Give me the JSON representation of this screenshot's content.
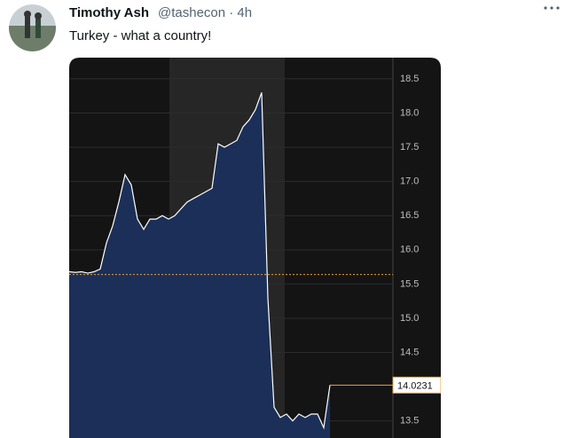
{
  "tweet": {
    "name": "Timothy Ash",
    "handle_time": "@tashecon · 4h",
    "text": "Turkey - what a country!"
  },
  "chart_data": {
    "type": "area",
    "categories": [
      null,
      null,
      null,
      null,
      null,
      null,
      null,
      null,
      null,
      null,
      null,
      null,
      null,
      null,
      null,
      null,
      null,
      null,
      null,
      null,
      null,
      null,
      null,
      null,
      null,
      null,
      null,
      null,
      null,
      null,
      null,
      null,
      null,
      null,
      null,
      null,
      null,
      null,
      null,
      null,
      null,
      null,
      null
    ],
    "values": [
      15.68,
      15.67,
      15.68,
      15.66,
      15.68,
      15.72,
      16.1,
      16.35,
      16.7,
      17.1,
      16.95,
      16.45,
      16.3,
      16.45,
      16.45,
      16.5,
      16.45,
      16.5,
      16.6,
      16.7,
      16.75,
      16.8,
      16.85,
      16.9,
      17.55,
      17.5,
      17.55,
      17.6,
      17.8,
      17.9,
      18.05,
      18.3,
      15.3,
      13.7,
      13.55,
      13.6,
      13.5,
      13.6,
      13.55,
      13.6,
      13.6,
      13.4,
      14.0231
    ],
    "color": "#ffffff",
    "fill": "#1b2f58",
    "reference_value": 15.64,
    "reference_color": "#e8a040",
    "ylim": [
      13.25,
      18.81
    ],
    "yticks": [
      13.5,
      14.5,
      {
        "value": 15,
        "label": "15.0"
      },
      15.5,
      {
        "value": 16,
        "label": "16.0"
      },
      16.5,
      {
        "value": 17,
        "label": "17.0"
      },
      17.5,
      {
        "value": 18,
        "label": "18.0"
      },
      18.5
    ],
    "grid": true
  }
}
